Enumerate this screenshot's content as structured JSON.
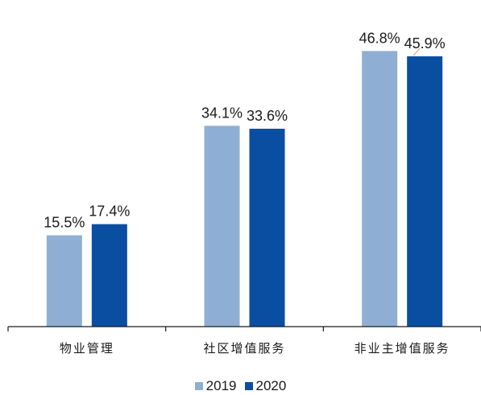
{
  "chart_data": {
    "type": "bar",
    "categories": [
      "物业管理",
      "社区增值服务",
      "非业主增值服务"
    ],
    "series": [
      {
        "name": "2019",
        "values": [
          15.5,
          34.1,
          46.8
        ],
        "labels": [
          "15.5%",
          "34.1%",
          "46.8%"
        ],
        "color": "#8eafd3"
      },
      {
        "name": "2020",
        "values": [
          17.4,
          33.6,
          45.9
        ],
        "labels": [
          "17.4%",
          "33.6%",
          "45.9%"
        ],
        "color": "#0a4ea2"
      }
    ],
    "unit": "%",
    "ylim": [
      0,
      50
    ],
    "title": "",
    "xlabel": "",
    "ylabel": "",
    "legend_position": "bottom",
    "grid": false,
    "axis_color": "#1a1a1a",
    "leader_line_color": "#f0a080"
  }
}
